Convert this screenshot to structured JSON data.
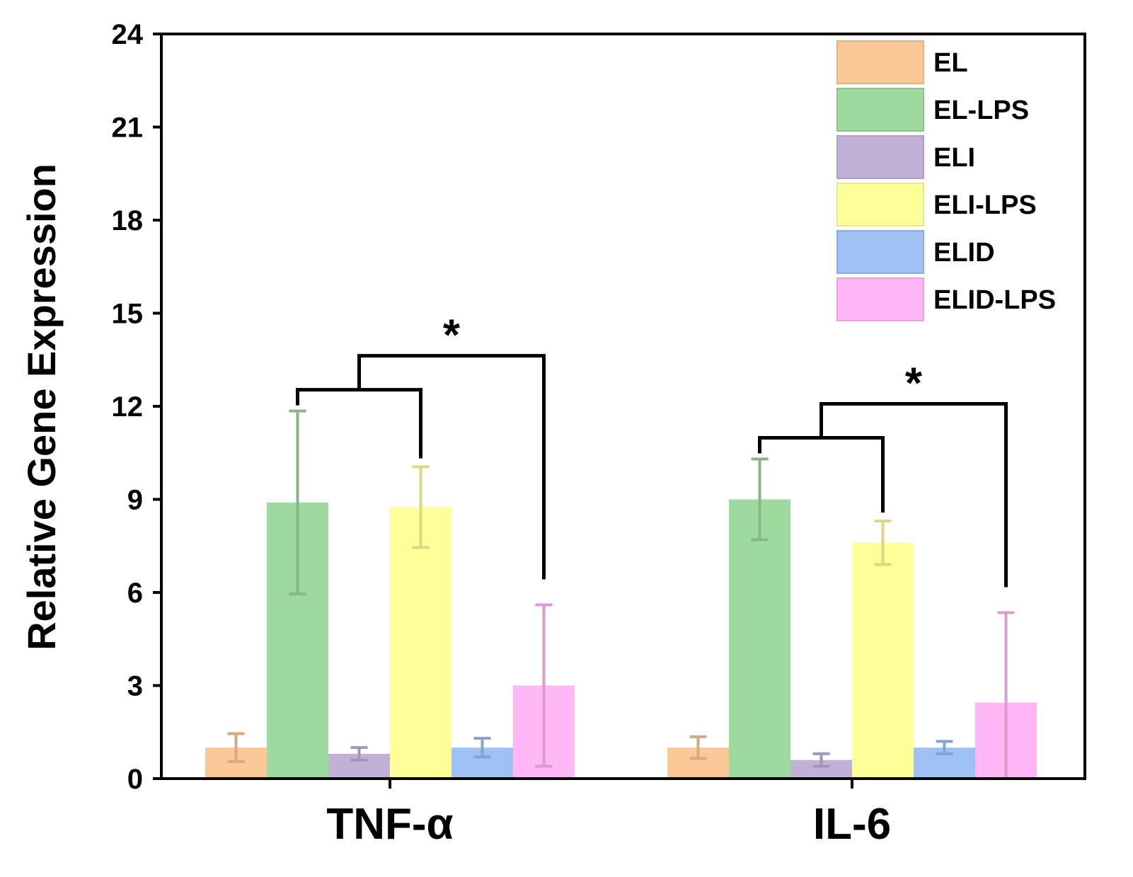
{
  "chart_data": {
    "type": "bar",
    "title": "",
    "xlabel": "",
    "ylabel": "Relative Gene Expression",
    "ylim": [
      0,
      24
    ],
    "yticks": [
      0,
      3,
      6,
      9,
      12,
      15,
      18,
      21,
      24
    ],
    "categories": [
      "TNF-α",
      "IL-6"
    ],
    "legend_position": "top-right",
    "grid": false,
    "series": [
      {
        "name": "EL",
        "color": "#F9C896",
        "values": [
          1.0,
          1.0
        ],
        "errors": [
          0.45,
          0.35
        ]
      },
      {
        "name": "EL-LPS",
        "color": "#9ED99E",
        "values": [
          8.9,
          9.0
        ],
        "errors": [
          2.95,
          1.3
        ]
      },
      {
        "name": "ELI",
        "color": "#C2B0D6",
        "values": [
          0.8,
          0.6
        ],
        "errors": [
          0.2,
          0.2
        ]
      },
      {
        "name": "ELI-LPS",
        "color": "#FFFF99",
        "values": [
          8.75,
          7.6
        ],
        "errors": [
          1.3,
          0.7
        ]
      },
      {
        "name": "ELID",
        "color": "#9EC0F2",
        "values": [
          1.0,
          1.0
        ],
        "errors": [
          0.3,
          0.2
        ]
      },
      {
        "name": "ELID-LPS",
        "color": "#FFB8F5",
        "values": [
          3.0,
          2.45
        ],
        "errors": [
          2.6,
          2.9
        ]
      }
    ],
    "significance": [
      {
        "category": "TNF-α",
        "groups": [
          "EL-LPS",
          "ELI-LPS",
          "ELID-LPS"
        ],
        "label": "*"
      },
      {
        "category": "IL-6",
        "groups": [
          "EL-LPS",
          "ELI-LPS",
          "ELID-LPS"
        ],
        "label": "*"
      }
    ]
  }
}
